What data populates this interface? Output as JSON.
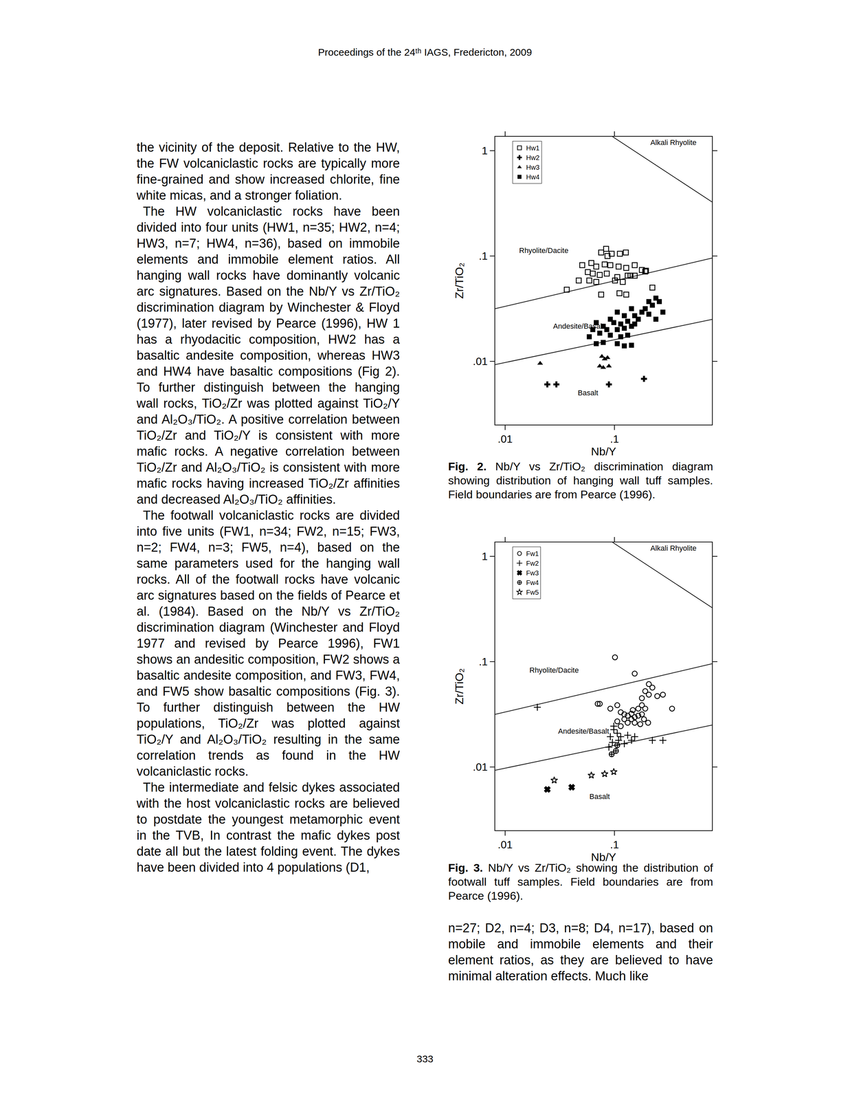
{
  "header": "Proceedings of the 24ᵗʰ IAGS, Fredericton, 2009",
  "page_number": "333",
  "left_column": [
    "the vicinity of the deposit. Relative to the HW, the FW volcaniclastic rocks are typically more fine-grained and show increased chlorite, fine white micas, and a stronger foliation.",
    "The HW volcaniclastic rocks have been divided into four units (HW1, n=35; HW2, n=4; HW3, n=7; HW4, n=36), based on immobile elements and immobile element ratios. All hanging wall rocks have dominantly volcanic arc signatures. Based on the Nb/Y vs Zr/TiO₂ discrimination diagram by Winchester & Floyd (1977), later revised by Pearce (1996), HW 1 has a rhyodacitic composition, HW2 has a basaltic andesite composition, whereas HW3 and HW4 have basaltic compositions (Fig 2). To further distinguish between the hanging wall rocks, TiO₂/Zr was plotted against TiO₂/Y and Al₂O₃/TiO₂. A positive correlation between TiO₂/Zr and TiO₂/Y is consistent with more mafic rocks. A negative correlation between TiO₂/Zr and Al₂O₃/TiO₂ is consistent with more mafic rocks having increased TiO₂/Zr affinities and decreased Al₂O₃/TiO₂ affinities.",
    "The footwall volcaniclastic rocks are divided into five units (FW1, n=34; FW2, n=15; FW3, n=2; FW4, n=3; FW5, n=4), based on the same parameters used for the hanging wall rocks. All of the footwall rocks have volcanic arc signatures based on the fields of Pearce et al. (1984). Based on the Nb/Y vs Zr/TiO₂ discrimination diagram (Winchester and Floyd 1977 and revised by Pearce 1996), FW1 shows an andesitic composition, FW2 shows a basaltic andesite composition, and FW3, FW4, and FW5 show basaltic compositions (Fig. 3). To further distinguish between the HW populations, TiO₂/Zr was plotted against TiO₂/Y and Al₂O₃/TiO₂ resulting in the same correlation trends as found in the HW volcaniclastic rocks.",
    "The intermediate and felsic dykes associated with the host volcaniclastic rocks are believed to postdate the youngest metamorphic event in the TVB, In contrast the mafic dykes post date all but the latest folding event. The dykes have been divided into 4 populations (D1,"
  ],
  "right_column": [
    "n=27; D2, n=4; D3, n=8; D4, n=17), based on mobile and immobile elements and their element ratios, as they are believed to have minimal alteration effects. Much like"
  ],
  "captions": [
    {
      "label": "Fig. 2.",
      "text": "Nb/Y vs Zr/TiO₂ discrimination diagram showing distribution of hanging wall tuff samples. Field boundaries are from Pearce (1996)."
    },
    {
      "label": "Fig. 3.",
      "text": "Nb/Y vs Zr/TiO₂ showing the distribution of footwall tuff samples. Field boundaries are from Pearce (1996)."
    }
  ],
  "chart_data": [
    {
      "type": "scatter",
      "x_label": "Nb/Y",
      "y_label": "Zr/TiO₂",
      "log": true,
      "grid": false,
      "legend": "upper left",
      "xlim": [
        0.0081,
        0.78
      ],
      "ylim": [
        0.0025,
        1.36
      ],
      "xticks": [
        {
          "value": 0.01,
          "label": ".01"
        },
        {
          "value": 0.1,
          "label": ".1"
        }
      ],
      "yticks": [
        {
          "value": 0.01,
          "label": ".01"
        },
        {
          "value": 0.1,
          "label": ".1"
        },
        1
      ],
      "boundaries": [
        {
          "x": [
            0.096,
            0.78
          ],
          "y": [
            1.36,
            0.326
          ]
        },
        {
          "x": [
            0.0081,
            0.78
          ],
          "y": [
            0.0316,
            0.0955
          ]
        },
        {
          "x": [
            0.0081,
            0.78
          ],
          "y": [
            0.0093,
            0.025
          ]
        }
      ],
      "field_labels": [
        {
          "text": "Alkali Rhyolite",
          "x": 0.345,
          "y": 1.2
        },
        {
          "text": "Rhyolite/Dacite",
          "x": 0.0225,
          "y": 0.113
        },
        {
          "text": "Andesite/Basalt",
          "x": 0.0471,
          "y": 0.0215
        },
        {
          "text": "Basalt",
          "x": 0.057,
          "y": 0.00501
        }
      ],
      "series": [
        {
          "name": "Hw1",
          "color": "#000000",
          "marker": "square-open",
          "x": [
            0.0755,
            0.0838,
            0.0942,
            0.112,
            0.127,
            0.0507,
            0.0614,
            0.0681,
            0.0813,
            0.0916,
            0.109,
            0.128,
            0.153,
            0.178,
            0.191,
            0.057,
            0.0633,
            0.0733,
            0.085,
            0.106,
            0.132,
            0.153,
            0.0471,
            0.0588,
            0.0681,
            0.101,
            0.119,
            0.0366,
            0.0755,
            0.111,
            0.128,
            0.222,
            0.0863,
            0.14,
            0.194
          ],
          "y": [
            0.108,
            0.117,
            0.105,
            0.105,
            0.108,
            0.0819,
            0.0858,
            0.0794,
            0.0832,
            0.0819,
            0.0794,
            0.077,
            0.0819,
            0.0736,
            0.0713,
            0.0703,
            0.0681,
            0.0661,
            0.0681,
            0.0631,
            0.0651,
            0.0651,
            0.0585,
            0.0585,
            0.0567,
            0.0585,
            0.0567,
            0.0479,
            0.043,
            0.0443,
            0.043,
            0.0501,
            0.1,
            0.0651,
            0.0724
          ]
        },
        {
          "name": "Hw2",
          "color": "#000000",
          "marker": "cross",
          "x": [
            0.0243,
            0.0294,
            0.0889,
            0.186
          ],
          "y": [
            0.00603,
            0.00603,
            0.00603,
            0.00681
          ]
        },
        {
          "name": "Hw3",
          "color": "#000000",
          "marker": "triangle-up",
          "x": [
            0.0209,
            0.0767,
            0.0813,
            0.0863,
            0.0733,
            0.0789,
            0.0889
          ],
          "y": [
            0.00955,
            0.0111,
            0.0105,
            0.0108,
            0.00898,
            0.00871,
            0.00898
          ]
        },
        {
          "name": "Hw4",
          "color": "#000000",
          "marker": "square",
          "x": [
            0.239,
            0.257,
            0.222,
            0.191,
            0.277,
            0.206,
            0.239,
            0.143,
            0.153,
            0.106,
            0.123,
            0.0916,
            0.0985,
            0.114,
            0.132,
            0.165,
            0.0681,
            0.0789,
            0.085,
            0.106,
            0.123,
            0.143,
            0.0633,
            0.0733,
            0.0916,
            0.114,
            0.132,
            0.0588,
            0.0681,
            0.0789,
            0.106,
            0.123,
            0.143,
            0.178,
            0.206,
            0.153
          ],
          "y": [
            0.0398,
            0.0369,
            0.0341,
            0.0316,
            0.0293,
            0.028,
            0.0251,
            0.0316,
            0.0271,
            0.0293,
            0.0271,
            0.0251,
            0.0233,
            0.0226,
            0.024,
            0.0251,
            0.0233,
            0.0215,
            0.02,
            0.02,
            0.0206,
            0.0215,
            0.02,
            0.0185,
            0.0177,
            0.0171,
            0.0177,
            0.0171,
            0.0147,
            0.0151,
            0.0147,
            0.014,
            0.0142,
            0.0293,
            0.0369,
            0.0226
          ]
        }
      ]
    },
    {
      "type": "scatter",
      "x_label": "Nb/Y",
      "y_label": "Zr/TiO₂",
      "log": true,
      "grid": false,
      "legend": "upper left",
      "xlim": [
        0.0081,
        0.78
      ],
      "ylim": [
        0.0025,
        1.36
      ],
      "xticks": [
        {
          "value": 0.01,
          "label": ".01"
        },
        {
          "value": 0.1,
          "label": ".1"
        }
      ],
      "yticks": [
        {
          "value": 0.01,
          "label": ".01"
        },
        {
          "value": 0.1,
          "label": ".1"
        },
        1
      ],
      "boundaries": [
        {
          "x": [
            0.096,
            0.78
          ],
          "y": [
            1.36,
            0.326
          ]
        },
        {
          "x": [
            0.0081,
            0.78
          ],
          "y": [
            0.0316,
            0.0955
          ]
        },
        {
          "x": [
            0.0081,
            0.78
          ],
          "y": [
            0.0093,
            0.025
          ]
        }
      ],
      "field_labels": [
        {
          "text": "Alkali Rhyolite",
          "x": 0.345,
          "y": 1.2
        },
        {
          "text": "Rhyolite/Dacite",
          "x": 0.0281,
          "y": 0.0832
        },
        {
          "text": "Andesite/Basalt",
          "x": 0.0523,
          "y": 0.0219
        },
        {
          "text": "Basalt",
          "x": 0.0733,
          "y": 0.00525
        }
      ],
      "series": [
        {
          "name": "Fw1",
          "color": "#000000",
          "marker": "circle-open",
          "x": [
            0.101,
            0.153,
            0.206,
            0.222,
            0.191,
            0.206,
            0.246,
            0.277,
            0.178,
            0.336,
            0.178,
            0.0733,
            0.0702,
            0.0916,
            0.106,
            0.114,
            0.123,
            0.132,
            0.143,
            0.153,
            0.165,
            0.178,
            0.186,
            0.143,
            0.123,
            0.106,
            0.132,
            0.153,
            0.172,
            0.114,
            0.191,
            0.165,
            0.147,
            0.203
          ],
          "y": [
            0.11,
            0.077,
            0.0612,
            0.0567,
            0.0525,
            0.0486,
            0.0471,
            0.0486,
            0.045,
            0.0358,
            0.0386,
            0.0398,
            0.0398,
            0.0358,
            0.0386,
            0.0331,
            0.0316,
            0.0307,
            0.0321,
            0.0297,
            0.0307,
            0.0316,
            0.0284,
            0.0284,
            0.0284,
            0.0271,
            0.0263,
            0.0263,
            0.0255,
            0.0244,
            0.0358,
            0.0358,
            0.0347,
            0.0263
          ]
        },
        {
          "name": "Fw2",
          "color": "#000000",
          "marker": "cross-thin-open",
          "x": [
            0.0197,
            0.0985,
            0.0916,
            0.106,
            0.114,
            0.132,
            0.0957,
            0.109,
            0.123,
            0.143,
            0.153,
            0.222,
            0.277,
            0.0985,
            0.0889
          ],
          "y": [
            0.0369,
            0.0226,
            0.0194,
            0.0209,
            0.0194,
            0.02,
            0.0171,
            0.0179,
            0.0166,
            0.0179,
            0.0194,
            0.0179,
            0.0179,
            0.0244,
            0.0154
          ]
        },
        {
          "name": "Fw3",
          "color": "#000000",
          "marker": "x",
          "x": [
            0.0243,
            0.0406
          ],
          "y": [
            0.00612,
            0.00641
          ]
        },
        {
          "name": "Fw4",
          "color": "#000000",
          "marker": "circle-cross-open",
          "x": [
            0.0942,
            0.103,
            0.106
          ],
          "y": [
            0.0132,
            0.0142,
            0.0161
          ]
        },
        {
          "name": "Fw5",
          "color": "#000000",
          "marker": "star-open",
          "x": [
            0.0281,
            0.0614,
            0.0813,
            0.0985
          ],
          "y": [
            0.00747,
            0.00832,
            0.00858,
            0.00898
          ]
        }
      ]
    }
  ]
}
